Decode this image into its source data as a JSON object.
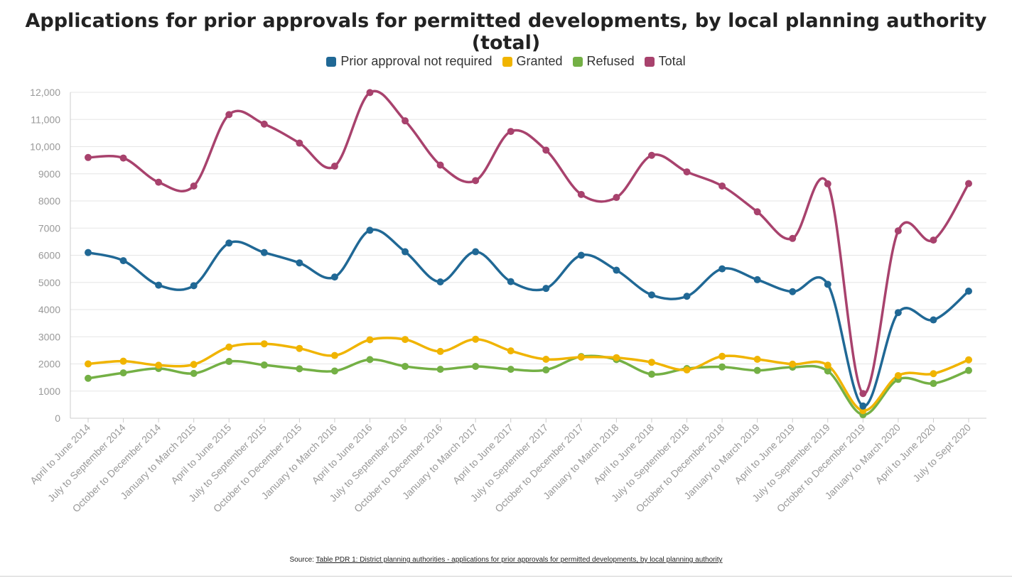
{
  "chart_data": {
    "type": "line",
    "title": "Applications for prior approvals for permitted developments, by local planning authority (total)",
    "categories": [
      "April to June 2014",
      "July to September 2014",
      "October to December 2014",
      "January to March 2015",
      "April to June 2015",
      "July to September 2015",
      "October to December 2015",
      "January to March 2016",
      "April to June 2016",
      "July to September 2016",
      "October to December 2016",
      "January to March 2017",
      "April to June 2017",
      "July to September 2017",
      "October to December 2017",
      "January to March 2018",
      "April to June 2018",
      "July to September 2018",
      "October to December 2018",
      "January to March 2019",
      "April to June 2019",
      "July to September 2019",
      "October to December 2019",
      "January to March 2020",
      "April to June 2020",
      "July to Sept 2020"
    ],
    "series": [
      {
        "name": "Prior approval not required",
        "color": "#206895",
        "values": [
          6100,
          5800,
          4900,
          4880,
          6450,
          6100,
          5720,
          5200,
          6920,
          6130,
          5020,
          6130,
          5030,
          4780,
          6000,
          5450,
          4540,
          4490,
          5500,
          5100,
          4660,
          4930,
          450,
          3890,
          3620,
          4680
        ]
      },
      {
        "name": "Granted",
        "color": "#F0B400",
        "values": [
          2000,
          2100,
          1950,
          1980,
          2620,
          2740,
          2570,
          2310,
          2890,
          2900,
          2460,
          2910,
          2480,
          2170,
          2250,
          2230,
          2060,
          1780,
          2280,
          2170,
          1990,
          1950,
          280,
          1570,
          1640,
          2150
        ]
      },
      {
        "name": "Refused",
        "color": "#74B045",
        "values": [
          1470,
          1670,
          1830,
          1650,
          2090,
          1960,
          1820,
          1740,
          2160,
          1910,
          1800,
          1910,
          1800,
          1780,
          2270,
          2160,
          1620,
          1830,
          1890,
          1760,
          1880,
          1740,
          130,
          1430,
          1280,
          1760
        ]
      },
      {
        "name": "Total",
        "color": "#A8426D",
        "values": [
          9600,
          9580,
          8690,
          8550,
          11180,
          10830,
          10130,
          9280,
          11990,
          10950,
          9320,
          8750,
          10560,
          9870,
          8240,
          8130,
          9680,
          9070,
          8550,
          7600,
          6620,
          8630,
          910,
          6900,
          6560,
          8640
        ]
      }
    ],
    "yticks": [
      "0",
      "1000",
      "2000",
      "3000",
      "4000",
      "5000",
      "6000",
      "7000",
      "8000",
      "9000",
      "10,000",
      "11,000",
      "12,000"
    ],
    "ylim": [
      0,
      12000
    ],
    "grid": true,
    "legend_position": "top-center"
  },
  "source": {
    "prefix": "Source: ",
    "link_text": "Table PDR 1: District planning authorities - applications for prior approvals for permitted developments, by local planning authority"
  }
}
